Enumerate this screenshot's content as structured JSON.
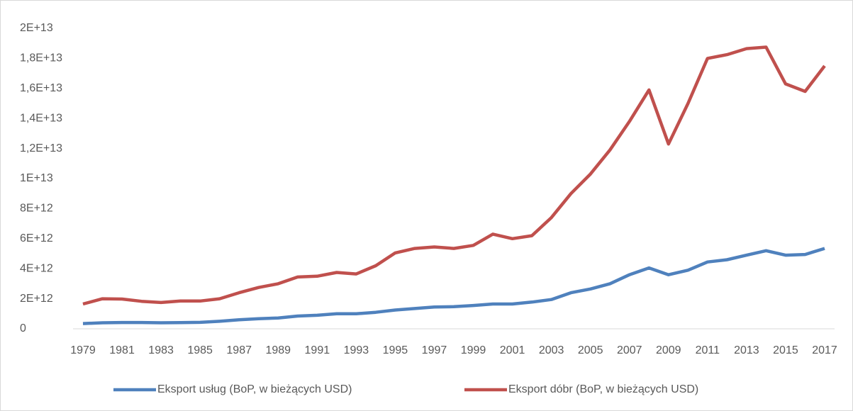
{
  "chart_data": {
    "type": "line",
    "categories": [
      "1979",
      null,
      "1981",
      null,
      "1983",
      null,
      "1985",
      null,
      "1987",
      null,
      "1989",
      null,
      "1991",
      null,
      "1993",
      null,
      "1995",
      null,
      "1997",
      null,
      "1999",
      null,
      "2001",
      null,
      "2003",
      null,
      "2005",
      null,
      "2007",
      null,
      "2009",
      null,
      "2011",
      null,
      "2013",
      null,
      "2015",
      null,
      "2017"
    ],
    "series": [
      {
        "name": "Eksport usług (BoP, w bieżących USD)",
        "color": "#4f81bd",
        "values": [
          350000000000.0,
          400000000000.0,
          420000000000.0,
          420000000000.0,
          400000000000.0,
          410000000000.0,
          430000000000.0,
          500000000000.0,
          600000000000.0,
          670000000000.0,
          720000000000.0,
          850000000000.0,
          900000000000.0,
          1000000000000.0,
          1000000000000.0,
          1100000000000.0,
          1250000000000.0,
          1350000000000.0,
          1450000000000.0,
          1470000000000.0,
          1550000000000.0,
          1650000000000.0,
          1650000000000.0,
          1780000000000.0,
          1950000000000.0,
          2400000000000.0,
          2650000000000.0,
          3000000000000.0,
          3600000000000.0,
          4050000000000.0,
          3600000000000.0,
          3900000000000.0,
          4450000000000.0,
          4600000000000.0,
          4900000000000.0,
          5200000000000.0,
          4900000000000.0,
          4950000000000.0,
          5350000000000.0
        ]
      },
      {
        "name": "Eksport dóbr (BoP, w bieżących USD)",
        "color": "#c0504d",
        "values": [
          1650000000000.0,
          2000000000000.0,
          1980000000000.0,
          1830000000000.0,
          1750000000000.0,
          1850000000000.0,
          1850000000000.0,
          2000000000000.0,
          2400000000000.0,
          2750000000000.0,
          3000000000000.0,
          3450000000000.0,
          3500000000000.0,
          3750000000000.0,
          3650000000000.0,
          4200000000000.0,
          5050000000000.0,
          5350000000000.0,
          5450000000000.0,
          5350000000000.0,
          5550000000000.0,
          6300000000000.0,
          6000000000000.0,
          6200000000000.0,
          7400000000000.0,
          9000000000000.0,
          10300000000000.0,
          11900000000000.0,
          13800000000000.0,
          15900000000000.0,
          12300000000000.0,
          15000000000000.0,
          18000000000000.0,
          18250000000000.0,
          18650000000000.0,
          18750000000000.0,
          16300000000000.0,
          15800000000000.0,
          17500000000000.0
        ]
      }
    ],
    "ylim": [
      0,
      20000000000000.0
    ],
    "yticks": [
      0,
      {
        "value": 2000000000000.0,
        "label": "2E+12"
      },
      {
        "value": 4000000000000.0,
        "label": "4E+12"
      },
      {
        "value": 6000000000000.0,
        "label": "6E+12"
      },
      {
        "value": 8000000000000.0,
        "label": "8E+12"
      },
      {
        "value": 10000000000000.0,
        "label": "1E+13"
      },
      {
        "value": 12000000000000.0,
        "label": "1,2E+13"
      },
      {
        "value": 14000000000000.0,
        "label": "1,4E+13"
      },
      {
        "value": 16000000000000.0,
        "label": "1,6E+13"
      },
      {
        "value": 18000000000000.0,
        "label": "1,8E+13"
      },
      {
        "value": 20000000000000.0,
        "label": "2E+13"
      }
    ],
    "grid": false,
    "legend": "bottom"
  }
}
